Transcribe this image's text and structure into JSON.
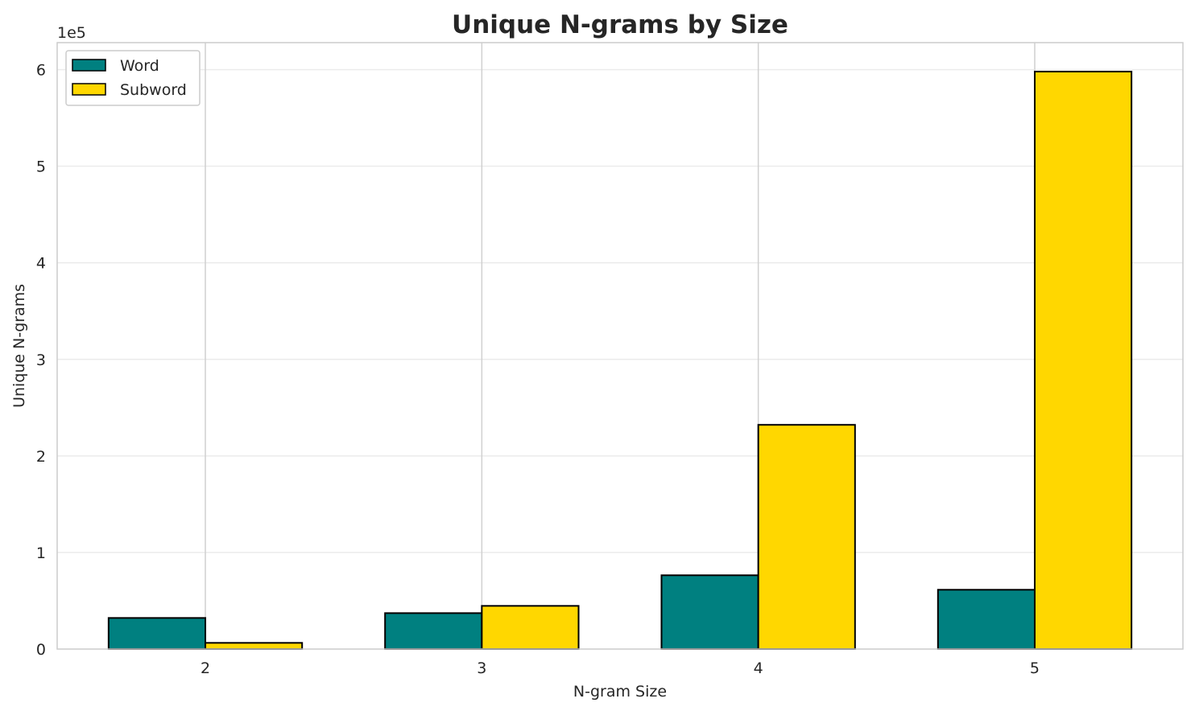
{
  "chart_data": {
    "type": "bar",
    "title": "Unique N-grams by Size",
    "xlabel": "N-gram Size",
    "ylabel": "Unique N-grams",
    "y_offset_label": "1e5",
    "categories": [
      "2",
      "3",
      "4",
      "5"
    ],
    "series": [
      {
        "name": "Word",
        "color": "#008080",
        "values": [
          32200,
          37200,
          76400,
          61400
        ]
      },
      {
        "name": "Subword",
        "color": "#FFD700",
        "values": [
          6400,
          44700,
          232200,
          598000
        ]
      }
    ],
    "ylim": [
      0,
      628000
    ],
    "yticks": [
      0,
      100000,
      200000,
      300000,
      400000,
      500000,
      600000
    ],
    "ytick_labels": [
      "0",
      "1",
      "2",
      "3",
      "4",
      "5",
      "6"
    ],
    "grid": true,
    "legend_position": "top-left"
  }
}
